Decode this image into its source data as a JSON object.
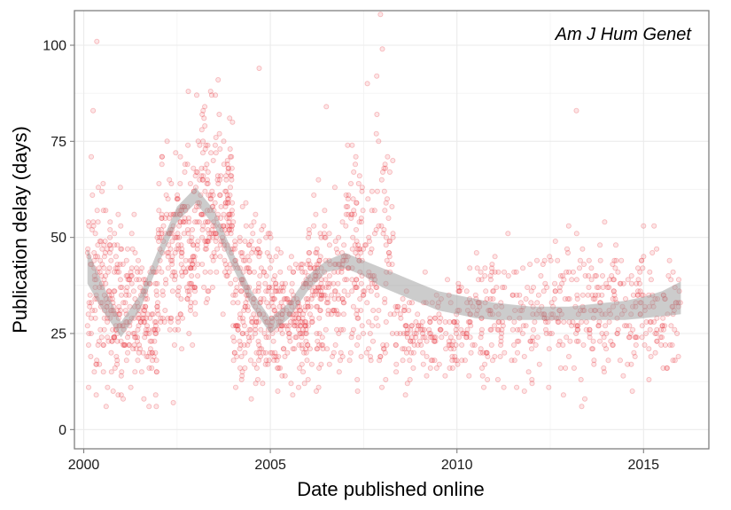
{
  "chart_data": {
    "type": "scatter",
    "title": "",
    "panel_label": "Am J Hum Genet",
    "xlabel": "Date published online",
    "ylabel": "Publication delay (days)",
    "xlim": [
      1999.75,
      2016.75
    ],
    "ylim": [
      -5,
      109
    ],
    "x_ticks": [
      2000,
      2005,
      2010,
      2015
    ],
    "x_tick_labels": [
      "2000",
      "2005",
      "2010",
      "2015"
    ],
    "y_ticks": [
      0,
      25,
      50,
      75,
      100
    ],
    "y_tick_labels": [
      "0",
      "25",
      "50",
      "75",
      "100"
    ],
    "grid": true,
    "legend": "none",
    "point_color": "#e8333a",
    "band_color": "#999999",
    "smooth_trend": {
      "name": "loess fit (confidence band)",
      "x": [
        2000.1,
        2000.5,
        2001.0,
        2001.5,
        2002.0,
        2002.5,
        2003.0,
        2003.5,
        2004.0,
        2004.5,
        2005.0,
        2005.5,
        2006.0,
        2006.5,
        2007.0,
        2007.5,
        2008.0,
        2008.5,
        2009.0,
        2009.5,
        2010.0,
        2010.5,
        2011.0,
        2011.5,
        2012.0,
        2012.5,
        2013.0,
        2013.5,
        2014.0,
        2014.5,
        2015.0,
        2015.5,
        2016.0
      ],
      "lower": [
        38,
        31,
        24,
        31,
        43,
        54,
        59,
        53,
        42,
        32,
        25,
        29,
        36,
        41,
        42,
        40,
        37,
        35,
        33,
        31,
        30,
        29,
        28.5,
        28.5,
        28.5,
        28.5,
        28.5,
        28.5,
        28.5,
        28.5,
        29,
        29.5,
        30
      ],
      "upper": [
        47,
        38,
        28,
        35,
        47,
        58,
        63,
        57,
        46,
        36,
        29,
        33,
        40,
        44,
        46,
        44,
        42,
        40,
        38,
        36,
        35,
        34,
        33,
        32.5,
        32,
        32,
        32,
        32.5,
        33,
        33.5,
        34.5,
        36,
        38.5
      ]
    },
    "scatter_density": [
      {
        "from": 2000.1,
        "to": 2001.0,
        "center": 36,
        "spread": 12,
        "count": 170
      },
      {
        "from": 2001.0,
        "to": 2002.0,
        "center": 30,
        "spread": 10,
        "count": 170
      },
      {
        "from": 2002.0,
        "to": 2003.0,
        "center": 46,
        "spread": 12,
        "count": 190
      },
      {
        "from": 2003.0,
        "to": 2004.0,
        "center": 58,
        "spread": 12,
        "count": 200
      },
      {
        "from": 2004.0,
        "to": 2005.0,
        "center": 34,
        "spread": 11,
        "count": 190
      },
      {
        "from": 2005.0,
        "to": 2006.0,
        "center": 30,
        "spread": 9,
        "count": 180
      },
      {
        "from": 2006.0,
        "to": 2007.0,
        "center": 36,
        "spread": 10,
        "count": 170
      },
      {
        "from": 2007.0,
        "to": 2008.3,
        "center": 46,
        "spread": 15,
        "count": 180
      },
      {
        "from": 2008.3,
        "to": 2010.0,
        "center": 24,
        "spread": 6,
        "count": 140
      },
      {
        "from": 2010.0,
        "to": 2012.0,
        "center": 29,
        "spread": 8,
        "count": 160
      },
      {
        "from": 2012.0,
        "to": 2014.0,
        "center": 31,
        "spread": 10,
        "count": 170
      },
      {
        "from": 2014.0,
        "to": 2016.0,
        "center": 31,
        "spread": 8,
        "count": 160
      }
    ],
    "notable_points": [
      {
        "x": 2000.35,
        "y": 101
      },
      {
        "x": 2000.25,
        "y": 83
      },
      {
        "x": 2000.2,
        "y": 71
      },
      {
        "x": 2003.6,
        "y": 91
      },
      {
        "x": 2004.7,
        "y": 94
      },
      {
        "x": 2002.8,
        "y": 88
      },
      {
        "x": 2006.5,
        "y": 84
      },
      {
        "x": 2007.85,
        "y": 92
      },
      {
        "x": 2007.95,
        "y": 108
      },
      {
        "x": 2008.0,
        "y": 99
      },
      {
        "x": 2007.6,
        "y": 90
      },
      {
        "x": 2013.2,
        "y": 83
      },
      {
        "x": 2000.6,
        "y": 6
      },
      {
        "x": 2002.4,
        "y": 7
      },
      {
        "x": 2005.2,
        "y": 10
      },
      {
        "x": 2005.6,
        "y": 9
      },
      {
        "x": 2011.6,
        "y": 11
      },
      {
        "x": 2015.0,
        "y": 53
      }
    ]
  }
}
